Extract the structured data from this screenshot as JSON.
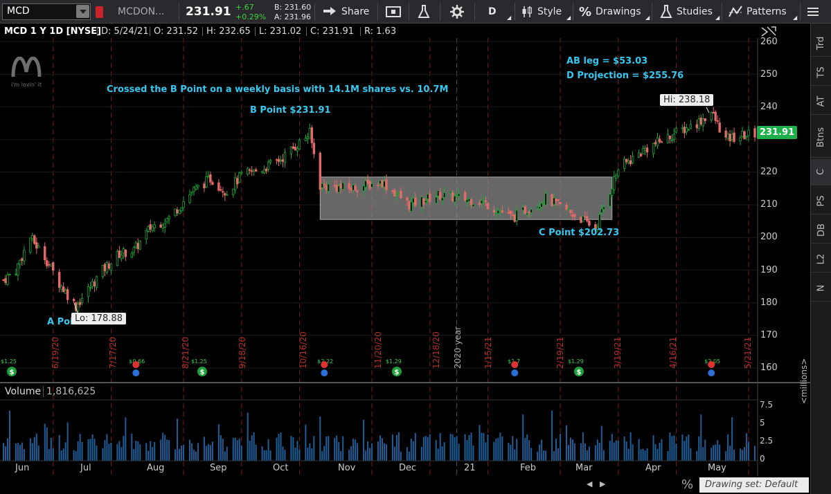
{
  "toolbar": {
    "symbol": "MCD",
    "company": "MCDON...",
    "last": "231.91",
    "change": "+.67",
    "change_pct": "+0.29%",
    "bid": "B: 231.60",
    "ask": "A: 231.96",
    "share_label": "Share",
    "period": "D",
    "style_label": "Style",
    "drawings_label": "Drawings",
    "studies_label": "Studies",
    "patterns_label": "Patterns"
  },
  "info": {
    "desc": "MCD 1 Y 1D [NYSE]",
    "date": "D: 5/24/21",
    "open": "O: 231.52",
    "high": "H: 232.65",
    "low": "L: 231.02",
    "close": "C: 231.91",
    "range": "R: 1.63"
  },
  "sidebar": {
    "tabs": [
      "Trd",
      "TS",
      "AT",
      "Btns",
      "C",
      "PS",
      "DB",
      "L2",
      "N"
    ],
    "active": "C"
  },
  "logo": {
    "tagline": "i'm lovin' it"
  },
  "annotations": {
    "crossed": "Crossed the B Point on a weekly basis with 14.1M shares vs. 10.7M",
    "b_point": "B Point $231.91",
    "c_point": "C Point $202.73",
    "a_point": "A Poi",
    "ab_leg": "AB leg = $53.03",
    "d_proj": "D Projection = $255.76",
    "lo": "Lo: 178.88",
    "hi": "Hi: 238.18",
    "last_price": "231.91"
  },
  "price_axis": {
    "min": 155,
    "max": 262,
    "ticks": [
      "260",
      "250",
      "240",
      "230",
      "220",
      "210",
      "200",
      "190",
      "180",
      "170",
      "160"
    ]
  },
  "volume": {
    "label": "Volume",
    "value": "1,816,625",
    "unit": "<millions>",
    "ticks": [
      "7.5",
      "5",
      "2.5",
      "0"
    ]
  },
  "months": [
    "Jun",
    "Jul",
    "Aug",
    "Sep",
    "Oct",
    "Nov",
    "Dec",
    "21",
    "Feb",
    "Mar",
    "Apr",
    "May"
  ],
  "vertical_dates": [
    "6/19/20",
    "7/17/20",
    "8/21/20",
    "9/18/20",
    "10/16/20",
    "11/20/20",
    "12/18/20",
    "1/15/21",
    "2/19/21",
    "3/19/21",
    "4/16/21",
    "5/21/21"
  ],
  "year_label": "2020 year",
  "dividends": [
    "$1.25",
    "$0.66",
    "$1.25",
    "$2.22",
    "$1.29",
    "$1.7",
    "$1.29",
    "$2.05"
  ],
  "colors": {
    "up": "#1fa83a",
    "down": "#e46a6a",
    "accent": "#37c8f0",
    "last_bg": "#1db04a"
  },
  "drawing_set": "Drawing set: Default",
  "chart_data": {
    "type": "candlestick",
    "anchors": [
      [
        "2020-05-26",
        187
      ],
      [
        "2020-06-01",
        190
      ],
      [
        "2020-06-08",
        200
      ],
      [
        "2020-06-15",
        194
      ],
      [
        "2020-06-22",
        186
      ],
      [
        "2020-06-30",
        179
      ],
      [
        "2020-07-06",
        184
      ],
      [
        "2020-07-13",
        190
      ],
      [
        "2020-07-21",
        195
      ],
      [
        "2020-07-28",
        196
      ],
      [
        "2020-08-05",
        203
      ],
      [
        "2020-08-14",
        206
      ],
      [
        "2020-08-25",
        214
      ],
      [
        "2020-09-03",
        218
      ],
      [
        "2020-09-11",
        214
      ],
      [
        "2020-09-18",
        219
      ],
      [
        "2020-09-28",
        221
      ],
      [
        "2020-10-07",
        224
      ],
      [
        "2020-10-16",
        229
      ],
      [
        "2020-10-21",
        231.91
      ],
      [
        "2020-10-26",
        216
      ],
      [
        "2020-11-09",
        215
      ],
      [
        "2020-11-25",
        217
      ],
      [
        "2020-12-08",
        210
      ],
      [
        "2020-12-22",
        213
      ],
      [
        "2021-01-12",
        211
      ],
      [
        "2021-01-27",
        206
      ],
      [
        "2021-02-12",
        212
      ],
      [
        "2021-03-03",
        205
      ],
      [
        "2021-03-08",
        202.73
      ],
      [
        "2021-03-19",
        221
      ],
      [
        "2021-04-01",
        227
      ],
      [
        "2021-04-16",
        232
      ],
      [
        "2021-04-26",
        235
      ],
      [
        "2021-05-03",
        238.18
      ],
      [
        "2021-05-10",
        230
      ],
      [
        "2021-05-24",
        231.91
      ]
    ],
    "consolidation_box": {
      "x": [
        "2020-10-26",
        "2021-03-16"
      ],
      "y": [
        205.5,
        218.5
      ]
    },
    "ylim": [
      155,
      262
    ],
    "volume_ylim": [
      0,
      8.5
    ]
  }
}
